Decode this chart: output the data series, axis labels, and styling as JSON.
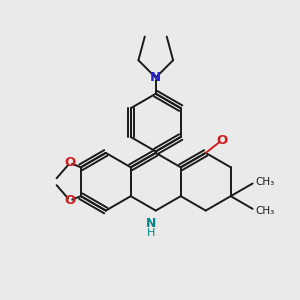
{
  "background_color": "#eaeaea",
  "bond_color": "#1a1a1a",
  "N_color": "#2020cc",
  "O_color": "#cc2020",
  "NH_color": "#008888",
  "figsize": [
    3.0,
    3.0
  ],
  "dpi": 100,
  "xlim": [
    -2.6,
    2.6
  ],
  "ylim": [
    -2.6,
    2.6
  ]
}
